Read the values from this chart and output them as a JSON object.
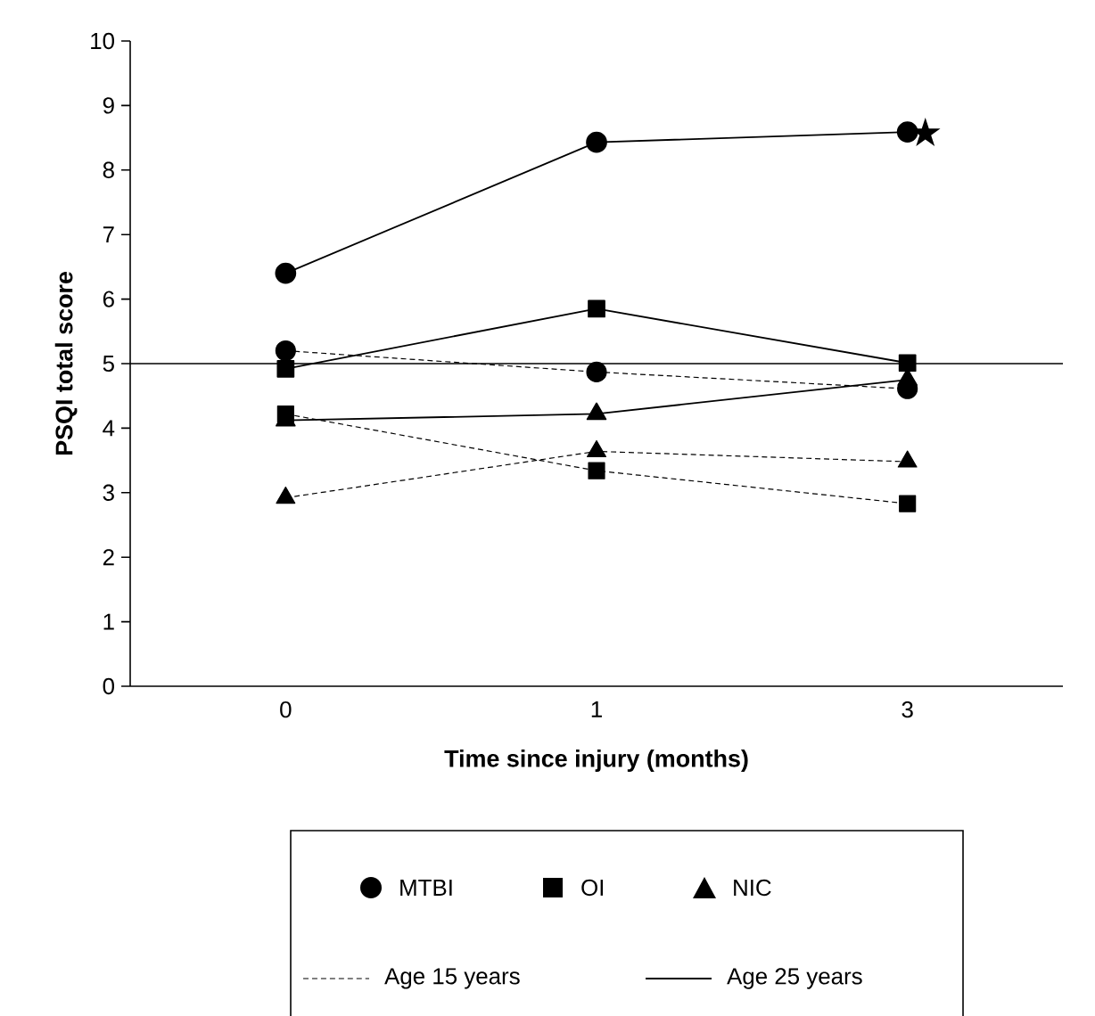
{
  "chart_data": {
    "type": "line",
    "xlabel": "Time since injury (months)",
    "ylabel": "PSQI  total score",
    "categories": [
      "0",
      "1",
      "3"
    ],
    "series": [
      {
        "color": "#000000",
        "marker": "circle",
        "line_style": "dashed",
        "values": [
          5.2,
          4.87,
          4.61
        ]
      },
      {
        "color": "#000000",
        "marker": "square",
        "line_style": "dashed",
        "values": [
          4.22,
          3.34,
          2.83
        ]
      },
      {
        "color": "#000000",
        "marker": "triangle",
        "line_style": "dashed",
        "values": [
          2.92,
          3.64,
          3.48
        ]
      },
      {
        "color": "#000000",
        "marker": "circle",
        "line_style": "solid",
        "values": [
          6.4,
          8.43,
          8.59
        ]
      },
      {
        "color": "#000000",
        "marker": "square",
        "line_style": "solid",
        "values": [
          4.92,
          5.85,
          5.01
        ]
      },
      {
        "color": "#000000",
        "marker": "triangle",
        "line_style": "solid",
        "values": [
          4.12,
          4.22,
          4.75
        ]
      }
    ],
    "ylim": [
      0,
      10
    ],
    "yticks": [
      0,
      1,
      2,
      3,
      4,
      5,
      6,
      7,
      8,
      9,
      10
    ],
    "ref_lines": [
      {
        "axis": "y",
        "value": 5,
        "color": "#000000"
      }
    ],
    "annotations": [
      {
        "text": "★",
        "x": "3",
        "y": 8.59
      },
      "MTBI",
      "OI",
      "NIC",
      "Age 15 years",
      "Age 25 years"
    ],
    "grid": false
  }
}
